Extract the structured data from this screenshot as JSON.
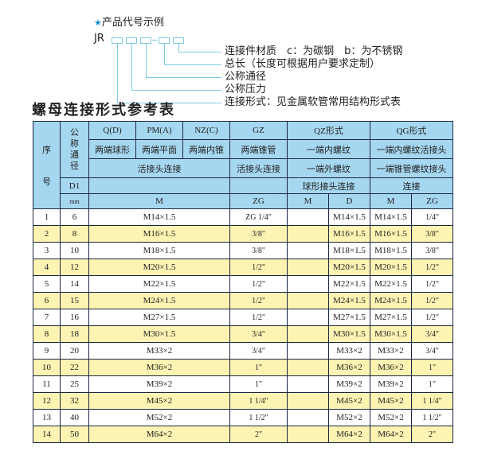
{
  "example": {
    "title": "产品代号示例",
    "star_icon": "star-icon",
    "code_prefix": "JR",
    "labels": [
      "连接件材质　c：为碳钢　b：为不锈钢",
      "总长（长度可根据用户要求定制）",
      "公称通径",
      "公称压力",
      "连接形式：见金属软管常用结构形式表"
    ]
  },
  "table_title": "螺母连接形式参考表",
  "header": {
    "seq": "序",
    "seq2": "号",
    "nominal": "公称通径",
    "d1": "D1",
    "mm": "mm",
    "qd": "Q(D)",
    "pma": "PM(A)",
    "nzc": "NZ(C)",
    "gz": "GZ",
    "qz": "QZ形式",
    "qg": "QG形式",
    "qd_desc": "两端球形",
    "pma_desc": "两端平面",
    "nzc_desc": "两端内锥",
    "gz_desc": "两端锥管",
    "qz_desc1": "一端内螺纹",
    "qg_desc1": "一端内螺纹活接头",
    "union1": "活接头连接",
    "gz_union": "活接头连接",
    "qz_desc2": "一端外螺纹",
    "qg_desc2": "一端锥管螺纹接头",
    "qz_desc3": "球形接头连接",
    "qg_desc3": "连接",
    "col_m": "M",
    "col_zg": "ZG",
    "qz_m": "M",
    "qz_d": "D",
    "qg_m": "M",
    "qg_zg": "ZG"
  },
  "rows": [
    {
      "no": "1",
      "dn": "6",
      "m": "M14×1.5",
      "zg": "ZG 1/4\"",
      "qz_m": "",
      "qz_d": "M14×1.5",
      "qg_m": "M14×1.5",
      "qg_zg": "1/4\""
    },
    {
      "no": "2",
      "dn": "8",
      "m": "M16×1.5",
      "zg": "3/8\"",
      "qz_m": "",
      "qz_d": "M16×1.5",
      "qg_m": "M16×1.5",
      "qg_zg": "3/8\""
    },
    {
      "no": "3",
      "dn": "10",
      "m": "M18×1.5",
      "zg": "3/8\"",
      "qz_m": "",
      "qz_d": "M18×1.5",
      "qg_m": "M18×1.5",
      "qg_zg": "3/8\""
    },
    {
      "no": "4",
      "dn": "12",
      "m": "M20×1.5",
      "zg": "1/2\"",
      "qz_m": "",
      "qz_d": "M20×1.5",
      "qg_m": "M20×1.5",
      "qg_zg": "1/2\""
    },
    {
      "no": "5",
      "dn": "14",
      "m": "M22×1.5",
      "zg": "1/2\"",
      "qz_m": "",
      "qz_d": "M22×1.5",
      "qg_m": "M22×1.5",
      "qg_zg": "1/2\""
    },
    {
      "no": "6",
      "dn": "15",
      "m": "M24×1.5",
      "zg": "1/2\"",
      "qz_m": "",
      "qz_d": "M24×1.5",
      "qg_m": "M24×1.5",
      "qg_zg": "1/2\""
    },
    {
      "no": "7",
      "dn": "16",
      "m": "M27×1.5",
      "zg": "1/2\"",
      "qz_m": "",
      "qz_d": "M27×1.5",
      "qg_m": "M27×1.5",
      "qg_zg": "1/2\""
    },
    {
      "no": "8",
      "dn": "18",
      "m": "M30×1.5",
      "zg": "3/4\"",
      "qz_m": "",
      "qz_d": "M30×1.5",
      "qg_m": "M30×1.5",
      "qg_zg": "3/4\""
    },
    {
      "no": "9",
      "dn": "20",
      "m": "M33×2",
      "zg": "3/4\"",
      "qz_m": "",
      "qz_d": "M33×2",
      "qg_m": "M33×2",
      "qg_zg": "3/4\""
    },
    {
      "no": "10",
      "dn": "22",
      "m": "M36×2",
      "zg": "1\"",
      "qz_m": "",
      "qz_d": "M36×2",
      "qg_m": "M36×2",
      "qg_zg": "1\""
    },
    {
      "no": "11",
      "dn": "25",
      "m": "M39×2",
      "zg": "1\"",
      "qz_m": "",
      "qz_d": "M39×2",
      "qg_m": "M39×2",
      "qg_zg": "1\""
    },
    {
      "no": "12",
      "dn": "32",
      "m": "M45×2",
      "zg": "1 1/4\"",
      "qz_m": "",
      "qz_d": "M45×2",
      "qg_m": "M45×2",
      "qg_zg": "1 1/4\""
    },
    {
      "no": "13",
      "dn": "40",
      "m": "M52×2",
      "zg": "1 1/2\"",
      "qz_m": "",
      "qz_d": "M52×2",
      "qg_m": "M52×2",
      "qg_zg": "1 1/2\""
    },
    {
      "no": "14",
      "dn": "50",
      "m": "M64×2",
      "zg": "2\"",
      "qz_m": "",
      "qz_d": "M64×2",
      "qg_m": "M64×2",
      "qg_zg": "2\""
    }
  ],
  "colors": {
    "header_bg": "#a6d7f0",
    "alt_row": "#fdf3b2",
    "border": "#1b2740",
    "diagram_line": "#7fcbe6",
    "star": "#1a8fd0"
  }
}
